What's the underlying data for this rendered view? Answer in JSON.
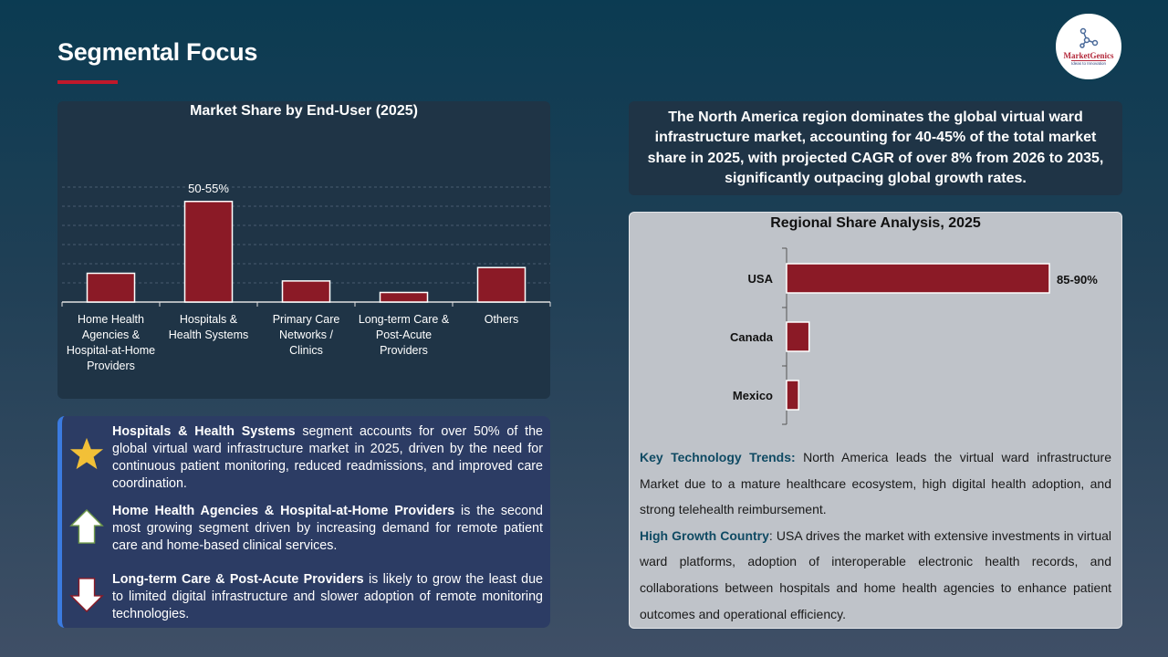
{
  "page": {
    "title": "Segmental Focus"
  },
  "logo": {
    "name": "MarketGenics",
    "tagline": "Ideas to Innovation"
  },
  "chart_data": [
    {
      "type": "bar",
      "title": "Market Share by End-User (2025)",
      "categories": [
        "Home Health Agencies & Hospital-at-Home Providers",
        "Hospitals & Health Systems",
        "Primary Care Networks / Clinics",
        "Long-term Care & Post-Acute Providers",
        "Others"
      ],
      "values": [
        15,
        52.5,
        11,
        5,
        18
      ],
      "data_labels": [
        "",
        "50-55%",
        "",
        "",
        ""
      ],
      "ylim": [
        0,
        60
      ],
      "grid": true,
      "bar_color": "#8b1a26"
    },
    {
      "type": "bar",
      "orientation": "horizontal",
      "title": "Regional Share Analysis, 2025",
      "categories": [
        "USA",
        "Canada",
        "Mexico"
      ],
      "values": [
        87.5,
        7.5,
        4
      ],
      "data_labels": [
        "85-90%",
        "",
        ""
      ],
      "bar_color": "#8b1a26"
    }
  ],
  "insights": [
    {
      "icon": "star-icon",
      "bold": "Hospitals & Health Systems",
      "text": " segment accounts for over 50% of the global virtual ward infrastructure market in 2025, driven by the need for continuous patient monitoring, reduced readmissions, and improved care coordination."
    },
    {
      "icon": "arrow-up-icon",
      "bold": "Home Health Agencies & Hospital-at-Home Providers",
      "text": " is the second most growing segment driven by increasing demand for remote patient care and home-based clinical services."
    },
    {
      "icon": "arrow-down-icon",
      "bold": "Long-term Care & Post-Acute Providers",
      "text": " is likely to grow the least due to limited digital infrastructure and slower adoption of remote monitoring technologies."
    }
  ],
  "region_summary": "The North America region dominates the global virtual ward infrastructure market, accounting for 40-45% of the total market share in 2025, with projected CAGR of over 8% from 2026 to 2035, significantly outpacing global growth rates.",
  "trends": [
    {
      "label": "Key Technology Trends:",
      "text": " North America leads the virtual ward infrastructure Market due to a mature healthcare ecosystem, high digital health adoption, and strong telehealth reimbursement."
    },
    {
      "label": "High Growth Country",
      "text": ": USA drives the market with extensive investments in virtual ward platforms, adoption of interoperable electronic health records, and collaborations between hospitals and home health agencies to enhance patient outcomes and operational efficiency."
    }
  ]
}
